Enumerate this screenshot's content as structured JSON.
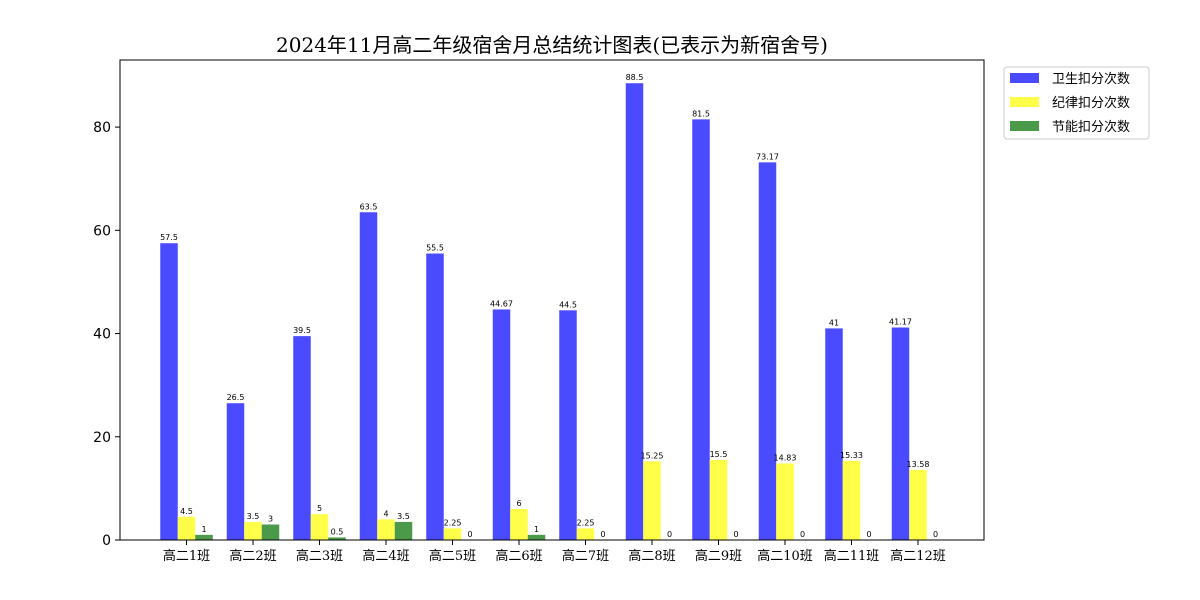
{
  "chart_data": {
    "type": "bar",
    "title": "2024年11月高二年级宿舍月总结统计图表(已表示为新宿舍号)",
    "xlabel": "",
    "ylabel": "",
    "categories": [
      "高二1班",
      "高二2班",
      "高二3班",
      "高二4班",
      "高二5班",
      "高二6班",
      "高二7班",
      "高二8班",
      "高二9班",
      "高二10班",
      "高二11班",
      "高二12班"
    ],
    "series": [
      {
        "name": "卫生扣分次数",
        "color": "#4a4aff",
        "values": [
          57.5,
          26.5,
          39.5,
          63.5,
          55.5,
          44.67,
          44.5,
          88.5,
          81.5,
          73.17,
          41,
          41.17
        ]
      },
      {
        "name": "纪律扣分次数",
        "color": "#ffff4a",
        "values": [
          4.5,
          3.5,
          5,
          4,
          2.25,
          6,
          2.25,
          15.25,
          15.5,
          14.83,
          15.33,
          13.58
        ]
      },
      {
        "name": "节能扣分次数",
        "color": "#4a9a4a",
        "values": [
          1,
          3,
          0.5,
          3.5,
          0,
          1,
          0,
          0,
          0,
          0,
          0,
          0
        ]
      }
    ],
    "ylim": [
      0,
      93
    ],
    "yticks": [
      0,
      20,
      40,
      60,
      80
    ],
    "grid": false,
    "legend_position": "outside-top-right"
  }
}
